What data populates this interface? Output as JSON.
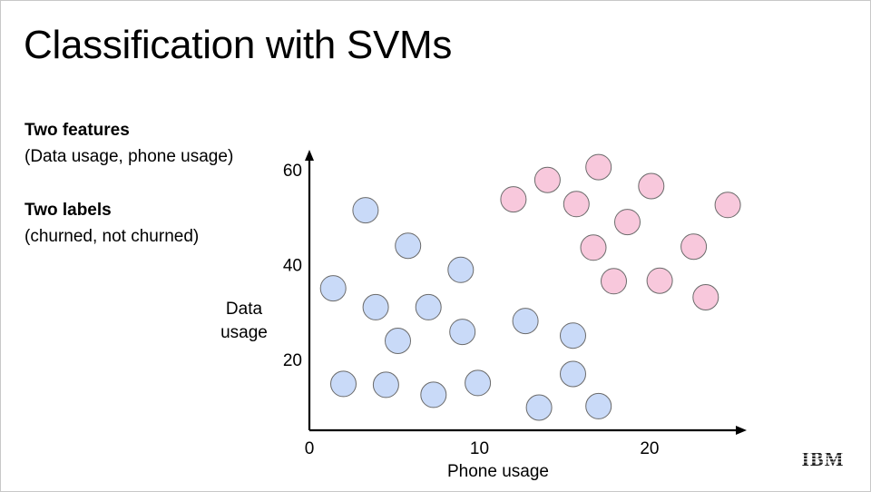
{
  "slide": {
    "title": "Classification with SVMs",
    "features_heading": "Two features",
    "features_text": "(Data usage, phone usage)",
    "labels_heading": "Two labels",
    "labels_text": "(churned, not churned)",
    "logo_text": "IBM"
  },
  "chart_data": {
    "type": "scatter",
    "title": "",
    "xlabel": "Phone usage",
    "ylabel_lines": [
      "Data",
      "usage"
    ],
    "x_ticks": [
      0,
      10,
      20
    ],
    "y_ticks": [
      20,
      40,
      60
    ],
    "xlim": [
      0,
      25.5
    ],
    "ylim": [
      5,
      63.5
    ],
    "grid": false,
    "legend": "none",
    "colors": {
      "not_churned_fill": "#c9daf8",
      "churned_fill": "#f8c8dc",
      "marker_stroke": "#6b6b6b",
      "axis": "#000000"
    },
    "series": [
      {
        "label": "not-churned",
        "color": "#c9daf8",
        "points": [
          [
            3.3,
            51.5
          ],
          [
            5.8,
            44.0
          ],
          [
            8.9,
            38.9
          ],
          [
            1.4,
            35.0
          ],
          [
            3.9,
            31.0
          ],
          [
            7.0,
            31.0
          ],
          [
            5.2,
            23.9
          ],
          [
            9.0,
            25.8
          ],
          [
            12.7,
            28.1
          ],
          [
            15.5,
            25.0
          ],
          [
            2.0,
            14.8
          ],
          [
            4.5,
            14.6
          ],
          [
            7.3,
            12.5
          ],
          [
            9.9,
            15.0
          ],
          [
            15.5,
            16.9
          ],
          [
            13.5,
            9.8
          ],
          [
            17.0,
            10.1
          ]
        ]
      },
      {
        "label": "churned",
        "color": "#f8c8dc",
        "points": [
          [
            12.0,
            53.8
          ],
          [
            14.0,
            57.9
          ],
          [
            17.0,
            60.6
          ],
          [
            15.7,
            52.8
          ],
          [
            20.1,
            56.6
          ],
          [
            18.7,
            49.0
          ],
          [
            24.6,
            52.6
          ],
          [
            16.7,
            43.6
          ],
          [
            22.6,
            43.8
          ],
          [
            17.9,
            36.5
          ],
          [
            20.6,
            36.6
          ],
          [
            23.3,
            33.1
          ]
        ]
      }
    ]
  }
}
